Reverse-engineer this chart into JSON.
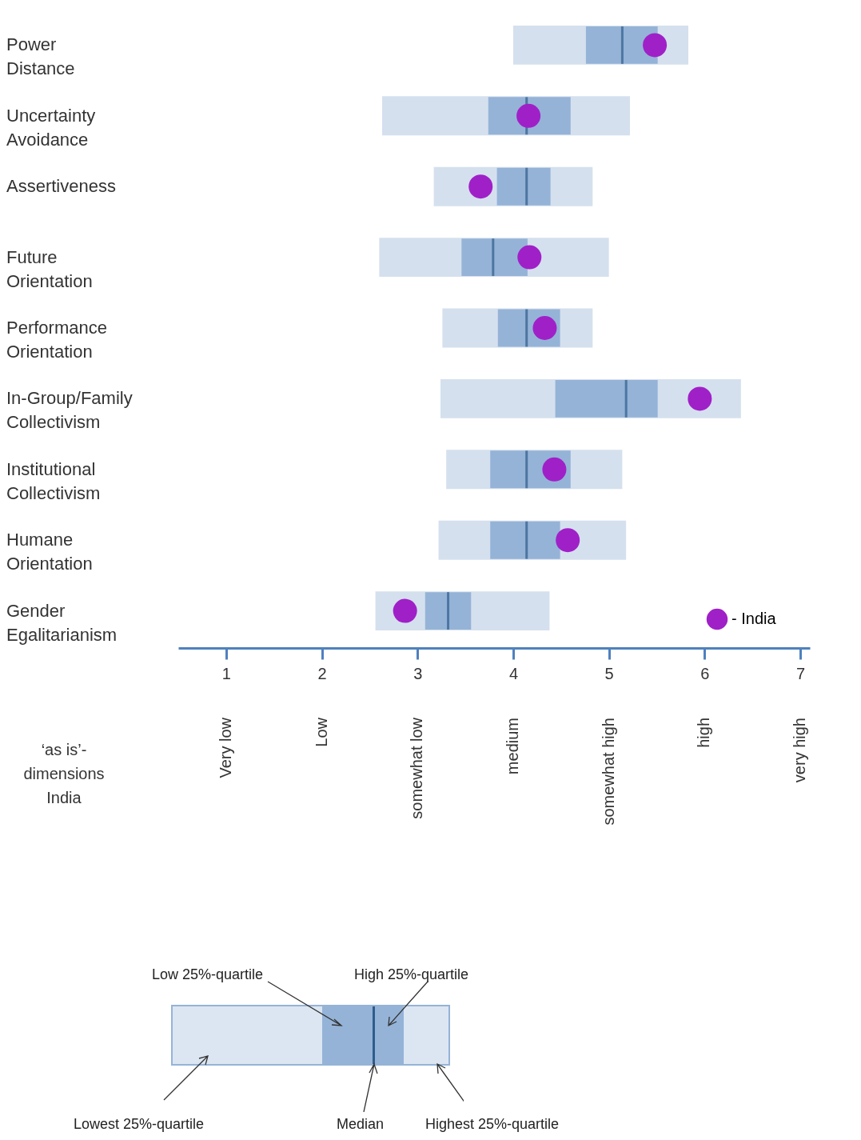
{
  "chart_data": {
    "type": "box",
    "orientation": "horizontal",
    "categories": [
      "Power Distance",
      "Uncertainty Avoidance",
      "Assertiveness",
      "Future Orientation",
      "Performance Orientation",
      "In-Group/Family Collectivism",
      "Institutional Collectivism",
      "Humane Orientation",
      "Gender Egalitarianism"
    ],
    "series": [
      {
        "color": "#95b3d7",
        "boxes": [
          {
            "low": 4.0,
            "q1": 4.76,
            "median": 5.14,
            "q3": 5.51,
            "high": 5.83
          },
          {
            "low": 2.63,
            "q1": 3.74,
            "median": 4.14,
            "q3": 4.6,
            "high": 5.22
          },
          {
            "low": 3.17,
            "q1": 3.83,
            "median": 4.14,
            "q3": 4.39,
            "high": 4.83
          },
          {
            "low": 2.6,
            "q1": 3.46,
            "median": 3.79,
            "q3": 4.15,
            "high": 5.0
          },
          {
            "low": 3.26,
            "q1": 3.84,
            "median": 4.14,
            "q3": 4.49,
            "high": 4.83
          },
          {
            "low": 3.24,
            "q1": 4.44,
            "median": 5.18,
            "q3": 5.51,
            "high": 6.38
          },
          {
            "low": 3.3,
            "q1": 3.76,
            "median": 4.14,
            "q3": 4.6,
            "high": 5.14
          },
          {
            "low": 3.22,
            "q1": 3.76,
            "median": 4.14,
            "q3": 4.49,
            "high": 5.18
          },
          {
            "low": 2.56,
            "q1": 3.08,
            "median": 3.32,
            "q3": 3.56,
            "high": 4.38
          }
        ]
      },
      {
        "type": "scatter",
        "name": "- India",
        "color": "#a020c8",
        "x": [
          "Power Distance",
          "Uncertainty Avoidance",
          "Assertiveness",
          "Future Orientation",
          "Performance Orientation",
          "In-Group/Family Collectivism",
          "Institutional Collectivism",
          "Humane Orientation",
          "Gender Egalitarianism"
        ],
        "values": [
          5.48,
          4.16,
          3.66,
          4.17,
          4.33,
          5.95,
          4.43,
          4.57,
          2.87
        ]
      }
    ],
    "xlim": [
      0.5,
      7.1
    ],
    "xticks": [
      1,
      2,
      3,
      4,
      5,
      6,
      7
    ],
    "marker": "circle",
    "legend": "bottom right",
    "annotations": [
      "‘as is’-dimensions India",
      "Very low",
      "Low",
      "somewhat low",
      "medium",
      "somewhat high",
      "high",
      "very high",
      "Low 25%-quartile",
      "High 25%-quartile",
      "Lowest 25%-quartile",
      "Median",
      "Highest 25%-quartile"
    ]
  }
}
